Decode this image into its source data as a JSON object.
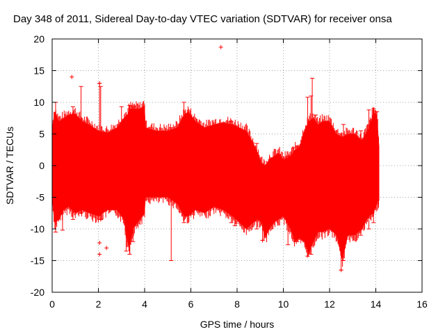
{
  "chart_data": {
    "type": "scatter",
    "title": "Day 348 of 2011, Sidereal Day-to-day VTEC variation (SDTVAR) for receiver onsa",
    "xlabel": "GPS time / hours",
    "ylabel": "SDTVAR / TECUs",
    "xlim": [
      0,
      16
    ],
    "ylim": [
      -20,
      20
    ],
    "xticks": [
      0,
      2,
      4,
      6,
      8,
      10,
      12,
      14,
      16
    ],
    "yticks": [
      -20,
      -15,
      -10,
      -5,
      0,
      5,
      10,
      15,
      20
    ],
    "grid": true,
    "series_color": "#ff0000",
    "envelope": {
      "x": [
        0.0,
        0.1,
        0.3,
        0.5,
        0.7,
        1.0,
        1.3,
        1.6,
        2.0,
        2.4,
        2.8,
        3.1,
        3.25,
        3.35,
        3.5,
        3.8,
        4.0,
        4.05,
        4.5,
        5.0,
        5.4,
        5.7,
        5.9,
        6.2,
        6.6,
        7.0,
        7.4,
        7.8,
        8.1,
        8.4,
        8.7,
        8.9,
        9.05,
        9.2,
        9.4,
        9.6,
        9.8,
        10.0,
        10.3,
        10.5,
        10.7,
        10.9,
        11.1,
        11.3,
        11.5,
        11.7,
        12.0,
        12.3,
        12.55,
        12.8,
        13.1,
        13.4,
        13.7,
        13.9,
        14.05,
        14.15
      ],
      "upper": [
        6.0,
        8.5,
        7.0,
        7.5,
        8.0,
        8.2,
        7.0,
        6.5,
        5.5,
        5.2,
        6.0,
        7.5,
        8.0,
        9.0,
        9.0,
        9.0,
        9.5,
        6.0,
        5.5,
        5.5,
        6.0,
        8.0,
        8.5,
        7.0,
        6.0,
        6.5,
        6.8,
        6.5,
        6.0,
        5.5,
        3.5,
        2.0,
        0.5,
        0.0,
        1.0,
        1.5,
        2.0,
        1.0,
        1.5,
        2.5,
        3.0,
        5.5,
        7.0,
        7.5,
        6.5,
        7.0,
        7.0,
        5.0,
        4.5,
        5.0,
        5.0,
        4.0,
        6.0,
        8.5,
        8.0,
        3.0
      ],
      "lower": [
        -5.5,
        -9.0,
        -8.5,
        -7.0,
        -6.5,
        -7.5,
        -7.0,
        -7.5,
        -8.0,
        -7.0,
        -7.0,
        -8.5,
        -12.0,
        -13.0,
        -10.0,
        -8.5,
        -7.5,
        -5.0,
        -5.0,
        -5.0,
        -6.0,
        -8.0,
        -8.0,
        -7.0,
        -7.5,
        -6.5,
        -7.0,
        -8.0,
        -9.0,
        -10.0,
        -9.0,
        -8.5,
        -9.0,
        -11.5,
        -10.0,
        -9.0,
        -8.5,
        -8.0,
        -10.0,
        -12.0,
        -11.5,
        -12.0,
        -14.0,
        -12.0,
        -10.5,
        -10.5,
        -10.0,
        -11.0,
        -15.0,
        -11.0,
        -11.0,
        -10.0,
        -8.0,
        -7.5,
        -6.0,
        -5.5
      ]
    },
    "spikes": [
      {
        "x": 0.15,
        "low": -10.5,
        "high": 10.0
      },
      {
        "x": 0.45,
        "low": -10.2,
        "high": 7.0
      },
      {
        "x": 0.9,
        "low": -8.5,
        "high": 9.3
      },
      {
        "x": 1.25,
        "low": -7.5,
        "high": 12.5
      },
      {
        "x": 2.05,
        "low": -8.5,
        "high": 13.0
      },
      {
        "x": 2.1,
        "low": -8.5,
        "high": 12.5
      },
      {
        "x": 3.0,
        "low": -7.0,
        "high": 9.3
      },
      {
        "x": 3.2,
        "low": -13.5,
        "high": 7.0
      },
      {
        "x": 3.35,
        "low": -14.0,
        "high": 9.5
      },
      {
        "x": 3.5,
        "low": -12.0,
        "high": 9.3
      },
      {
        "x": 5.15,
        "low": -15.0,
        "high": 6.0
      },
      {
        "x": 5.7,
        "low": -9.0,
        "high": 10.0
      },
      {
        "x": 7.75,
        "low": -9.0,
        "high": 7.0
      },
      {
        "x": 7.9,
        "low": -9.5,
        "high": 5.5
      },
      {
        "x": 8.85,
        "low": -10.0,
        "high": 3.5
      },
      {
        "x": 9.1,
        "low": -11.8,
        "high": -1.0
      },
      {
        "x": 10.2,
        "low": -12.5,
        "high": 1.5
      },
      {
        "x": 10.45,
        "low": -11.5,
        "high": 2.8
      },
      {
        "x": 10.6,
        "low": -12.0,
        "high": 3.0
      },
      {
        "x": 11.05,
        "low": -14.3,
        "high": 10.8
      },
      {
        "x": 11.2,
        "low": -14.0,
        "high": 11.0
      },
      {
        "x": 11.25,
        "low": -12.0,
        "high": 13.8
      },
      {
        "x": 11.4,
        "low": -11.0,
        "high": 8.0
      },
      {
        "x": 12.5,
        "low": -16.5,
        "high": 5.0
      },
      {
        "x": 12.6,
        "low": -15.0,
        "high": 6.5
      },
      {
        "x": 13.35,
        "low": -11.0,
        "high": 5.5
      },
      {
        "x": 13.7,
        "low": -10.0,
        "high": 8.8
      },
      {
        "x": 13.9,
        "low": -9.0,
        "high": 9.0
      },
      {
        "x": 14.05,
        "low": -6.0,
        "high": 8.5
      }
    ],
    "outliers": [
      {
        "x": 0.85,
        "y": 14.0
      },
      {
        "x": 2.05,
        "y": 13.0
      },
      {
        "x": 2.1,
        "y": -8.5
      },
      {
        "x": 2.05,
        "y": -12.2
      },
      {
        "x": 2.05,
        "y": -14.0
      },
      {
        "x": 2.35,
        "y": -13.0
      },
      {
        "x": 7.3,
        "y": 18.7
      },
      {
        "x": 9.1,
        "y": -11.8
      },
      {
        "x": 12.5,
        "y": -16.5
      }
    ]
  }
}
